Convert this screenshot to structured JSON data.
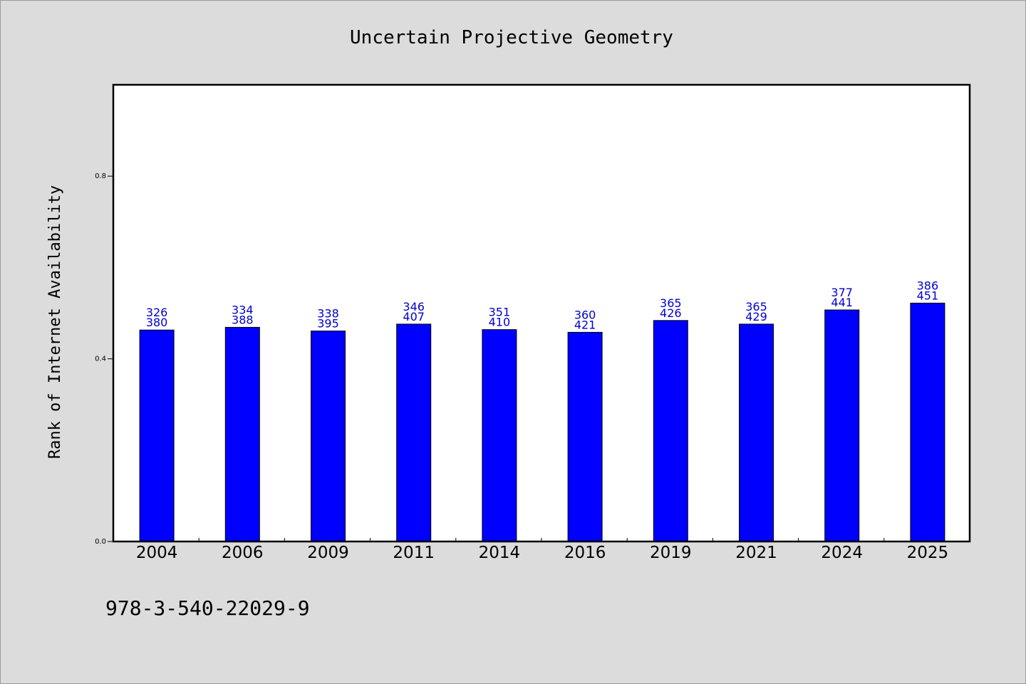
{
  "chart_data": {
    "type": "bar",
    "title": "Uncertain Projective Geometry",
    "ylabel": "Rank of Internet Availability",
    "xlabel": "",
    "categories": [
      "2004",
      "2006",
      "2009",
      "2011",
      "2014",
      "2016",
      "2019",
      "2021",
      "2024",
      "2025"
    ],
    "values": [
      0.463,
      0.469,
      0.461,
      0.476,
      0.464,
      0.458,
      0.484,
      0.476,
      0.507,
      0.522
    ],
    "bar_labels_top": [
      "326",
      "334",
      "338",
      "346",
      "351",
      "360",
      "365",
      "365",
      "377",
      "386"
    ],
    "bar_labels_bottom": [
      "380",
      "388",
      "395",
      "407",
      "410",
      "421",
      "426",
      "429",
      "441",
      "451"
    ],
    "ylim": [
      0,
      1.0
    ],
    "yticks": [
      "0.0",
      "0.4",
      "0.8"
    ],
    "grid": false,
    "footnote": "978-3-540-22029-9",
    "colors": {
      "bar": "#0000ff",
      "label": "#0000cc",
      "background": "#dcdcdc",
      "plot_background": "#ffffff"
    }
  }
}
